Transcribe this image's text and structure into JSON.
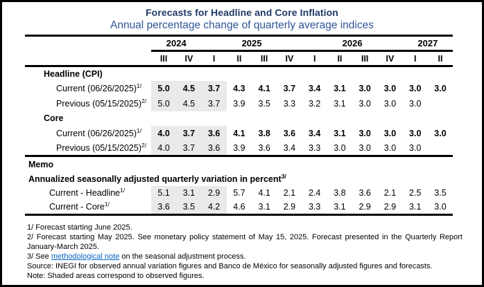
{
  "header": {
    "title": "Forecasts for Headline and Core Inflation",
    "subtitle": "Annual percentage change of quarterly average indices"
  },
  "table": {
    "years": [
      {
        "label": "2024",
        "span": 2
      },
      {
        "label": "2025",
        "span": 4
      },
      {
        "label": "2026",
        "span": 4
      },
      {
        "label": "2027",
        "span": 2
      }
    ],
    "quarters": [
      "III",
      "IV",
      "I",
      "II",
      "III",
      "IV",
      "I",
      "II",
      "III",
      "IV",
      "I",
      "II"
    ],
    "shaded_note": "first three quarter columns are shaded (observed figures)",
    "rows": [
      {
        "type": "group",
        "label": "Headline (CPI)"
      },
      {
        "type": "data",
        "label": "Current (06/26/2025)",
        "sup": "1/",
        "bold": true,
        "shaded": 3,
        "values": [
          "5.0",
          "4.5",
          "3.7",
          "4.3",
          "4.1",
          "3.7",
          "3.4",
          "3.1",
          "3.0",
          "3.0",
          "3.0",
          "3.0"
        ]
      },
      {
        "type": "data",
        "label": "Previous (05/15/2025)",
        "sup": "2/",
        "bold": false,
        "shaded": 3,
        "values": [
          "5.0",
          "4.5",
          "3.7",
          "3.9",
          "3.5",
          "3.3",
          "3.2",
          "3.1",
          "3.0",
          "3.0",
          "3.0",
          ""
        ]
      },
      {
        "type": "group",
        "label": "Core"
      },
      {
        "type": "data",
        "label": "Current (06/26/2025)",
        "sup": "1/",
        "bold": true,
        "shaded": 3,
        "values": [
          "4.0",
          "3.7",
          "3.6",
          "4.1",
          "3.8",
          "3.6",
          "3.4",
          "3.1",
          "3.0",
          "3.0",
          "3.0",
          "3.0"
        ]
      },
      {
        "type": "data",
        "label": "Previous (05/15/2025)",
        "sup": "2/",
        "bold": false,
        "shaded": 3,
        "values": [
          "4.0",
          "3.7",
          "3.6",
          "3.9",
          "3.6",
          "3.4",
          "3.3",
          "3.0",
          "3.0",
          "3.0",
          "3.0",
          ""
        ]
      },
      {
        "type": "memo-head",
        "label": "Memo"
      },
      {
        "type": "memo-sub",
        "label": "Annualized seasonally adjusted quarterly variation in percent",
        "sup": "3/"
      },
      {
        "type": "data",
        "memo": true,
        "label": "Current - Headline",
        "sup": "1/",
        "bold": false,
        "shaded": 3,
        "values": [
          "5.1",
          "3.1",
          "2.9",
          "5.7",
          "4.1",
          "2.1",
          "2.4",
          "3.8",
          "3.6",
          "2.1",
          "2.5",
          "3.5"
        ]
      },
      {
        "type": "data",
        "memo": true,
        "label": "Current - Core",
        "sup": "1/",
        "bold": false,
        "shaded": 3,
        "values": [
          "3.6",
          "3.5",
          "4.2",
          "4.6",
          "3.1",
          "2.9",
          "3.3",
          "3.1",
          "2.9",
          "2.9",
          "3.1",
          "3.0"
        ]
      }
    ]
  },
  "footnotes": [
    {
      "segments": [
        {
          "text": "1/ Forecast starting June 2025."
        }
      ]
    },
    {
      "segments": [
        {
          "text": "2/ Forecast starting May 2025. See monetary policy statement of May 15, 2025. Forecast presented in the Quarterly Report January-March 2025."
        }
      ]
    },
    {
      "segments": [
        {
          "text": "3/ See "
        },
        {
          "text": "methodological note",
          "link": true
        },
        {
          "text": " on the seasonal adjustment process."
        }
      ]
    },
    {
      "segments": [
        {
          "text": "Source: INEGI for observed annual variation figures and Banco de México for seasonally adjusted figures and forecasts."
        }
      ]
    },
    {
      "segments": [
        {
          "text": "Note: Shaded areas correspond to observed figures."
        }
      ]
    }
  ],
  "colors": {
    "title": "#1F3864",
    "subtitle": "#2F5597",
    "shading": "#EAEAEA",
    "link": "#0563C1",
    "rule": "#000000"
  }
}
